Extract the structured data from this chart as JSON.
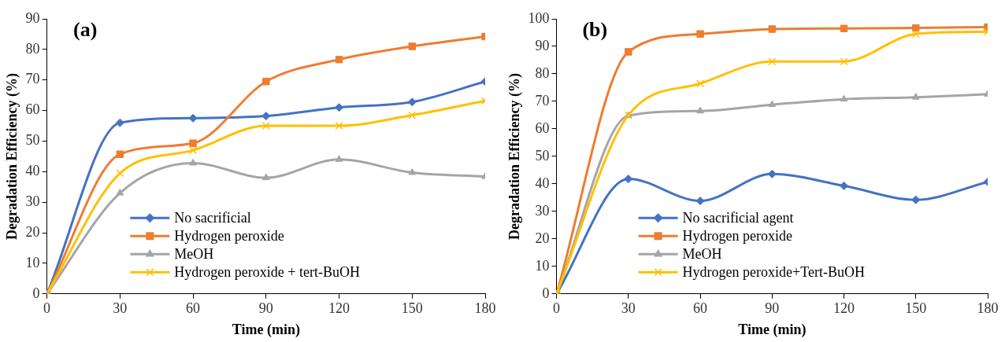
{
  "chart_data": [
    {
      "type": "line",
      "title": "(a)",
      "xlabel": "Time (min)",
      "ylabel": "Degradation Efficiency (%)",
      "x": [
        0,
        30,
        60,
        90,
        120,
        150,
        180
      ],
      "xlim": [
        0,
        180
      ],
      "xticks": [
        0,
        30,
        60,
        90,
        120,
        150,
        180
      ],
      "ylim": [
        0,
        90
      ],
      "yticks": [
        0,
        10,
        20,
        30,
        40,
        50,
        60,
        70,
        80,
        90
      ],
      "grid": false,
      "legend": "bottom right",
      "series": [
        {
          "name": "No sacrificial",
          "color": "#4472c4",
          "marker": "diamond",
          "values": [
            0,
            56,
            57.5,
            58.2,
            61,
            62.8,
            69.5
          ]
        },
        {
          "name": "Hydrogen peroxide",
          "color": "#ed7d31",
          "marker": "square",
          "values": [
            0,
            45.7,
            49.3,
            69.5,
            76.7,
            81,
            84.2
          ]
        },
        {
          "name": "MeOH",
          "color": "#a5a5a5",
          "marker": "triangle",
          "values": [
            0,
            33,
            42.8,
            38,
            44,
            39.7,
            38.4
          ]
        },
        {
          "name": "Hydrogen peroxide + tert-BuOH",
          "color": "#ffc000",
          "marker": "cross",
          "values": [
            0,
            39.5,
            47,
            55,
            55,
            58.5,
            63.2
          ]
        }
      ]
    },
    {
      "type": "line",
      "title": "(b)",
      "xlabel": "Time (min)",
      "ylabel": "Degradation Efficiency (%)",
      "x": [
        0,
        30,
        60,
        90,
        120,
        150,
        180
      ],
      "xlim": [
        0,
        180
      ],
      "xticks": [
        0,
        30,
        60,
        90,
        120,
        150,
        180
      ],
      "ylim": [
        0,
        100
      ],
      "yticks": [
        0,
        10,
        20,
        30,
        40,
        50,
        60,
        70,
        80,
        90,
        100
      ],
      "grid": false,
      "legend": "bottom right",
      "series": [
        {
          "name": "No sacrificial agent",
          "color": "#4472c4",
          "marker": "diamond",
          "values": [
            0,
            41.8,
            33.8,
            43.6,
            39.3,
            34.2,
            40.7
          ]
        },
        {
          "name": "Hydrogen peroxide",
          "color": "#ed7d31",
          "marker": "square",
          "values": [
            0,
            88,
            94.5,
            96.3,
            96.5,
            96.7,
            97
          ]
        },
        {
          "name": "MeOH",
          "color": "#a5a5a5",
          "marker": "triangle",
          "values": [
            0,
            64.8,
            66.5,
            68.8,
            70.8,
            71.5,
            72.6
          ]
        },
        {
          "name": "Hydrogen peroxide+Tert-BuOH",
          "color": "#ffc000",
          "marker": "cross",
          "values": [
            0,
            65,
            76.5,
            84.5,
            84.5,
            94.5,
            95.3
          ]
        }
      ]
    }
  ]
}
